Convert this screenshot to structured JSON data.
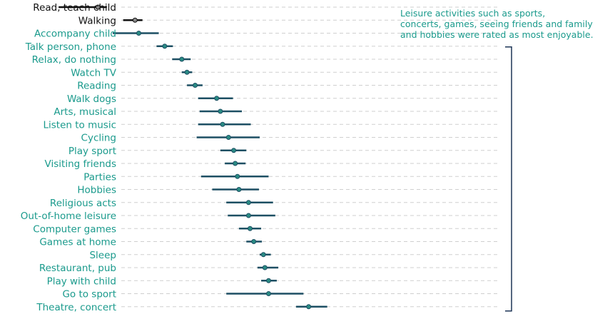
{
  "chart_data": {
    "type": "scatter",
    "subtype": "point-range",
    "title": "",
    "xlabel": "",
    "ylabel": "",
    "grid": "horizontal dashed guide lines",
    "xlim": [
      0,
      100
    ],
    "colors": {
      "highlight": "#1a9a8c",
      "highlight_line": "#1d4f63",
      "highlight_point": "#2a8c84",
      "other": "#111111",
      "other_point": "#8a8a8a",
      "grid": "#cfcfcf",
      "bracket": "#1d3557"
    },
    "annotation": {
      "lines": [
        "Leisure activities such as sports,",
        "concerts, games, seeing friends and family",
        "and hobbies were rated as most enjoyable."
      ]
    },
    "categories": [
      "Read, teach child",
      "Walking",
      "Accompany child",
      "Talk person, phone",
      "Relax, do nothing",
      "Watch TV",
      "Reading",
      "Walk dogs",
      "Arts, musical",
      "Listen to music",
      "Cycling",
      "Play sport",
      "Visiting friends",
      "Parties",
      "Hobbies",
      "Religious acts",
      "Out-of-home leisure",
      "Computer games",
      "Games at home",
      "Sleep",
      "Restaurant, pub",
      "Play with child",
      "Go to sport",
      "Theatre, concert"
    ],
    "estimate": [
      13.2,
      18.2,
      18.7,
      22.2,
      24.5,
      25.2,
      26.3,
      29.2,
      29.7,
      30.0,
      30.8,
      31.5,
      31.7,
      32.0,
      32.2,
      33.5,
      33.5,
      33.7,
      34.2,
      35.5,
      35.7,
      36.2,
      36.2,
      41.6
    ],
    "lower": [
      7.9,
      16.6,
      15.2,
      21.1,
      23.2,
      24.5,
      25.2,
      26.7,
      26.9,
      26.7,
      26.5,
      29.7,
      30.3,
      27.1,
      28.6,
      30.5,
      30.7,
      32.2,
      33.2,
      35.0,
      34.7,
      35.2,
      30.5,
      39.9
    ],
    "upper": [
      14.4,
      19.2,
      21.4,
      23.3,
      25.7,
      25.9,
      27.3,
      31.4,
      32.6,
      33.8,
      35.0,
      33.2,
      33.1,
      36.2,
      34.9,
      36.8,
      37.1,
      35.2,
      35.3,
      36.5,
      37.5,
      37.3,
      40.9,
      44.1
    ],
    "highlight": [
      false,
      false,
      true,
      true,
      true,
      true,
      true,
      true,
      true,
      true,
      true,
      true,
      true,
      true,
      true,
      true,
      true,
      true,
      true,
      true,
      true,
      true,
      true,
      true
    ]
  }
}
